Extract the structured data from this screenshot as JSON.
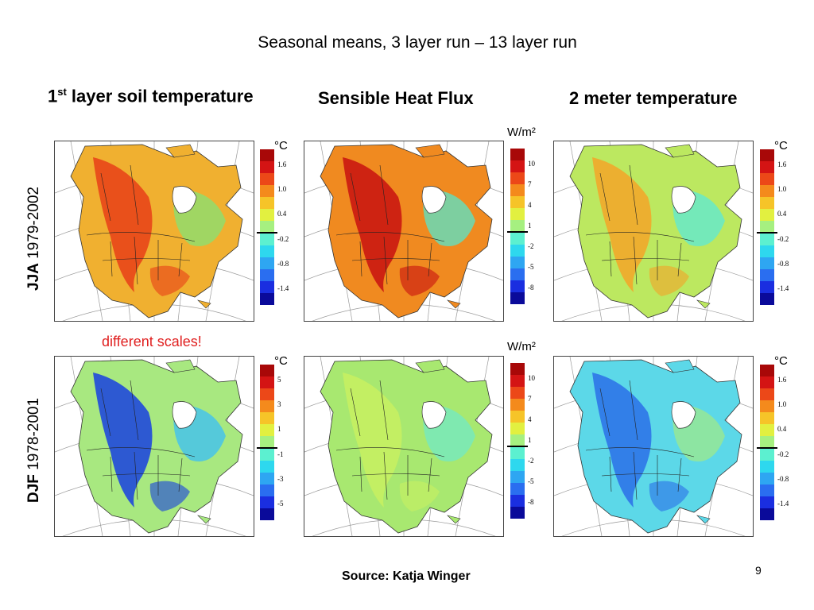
{
  "slide": {
    "title": "Seasonal means, 3 layer run – 13 layer run",
    "columns": [
      {
        "main": "1",
        "sup": "st",
        "rest": " layer soil temperature"
      },
      {
        "main": "Sensible Heat Flux",
        "sup": "",
        "rest": ""
      },
      {
        "main": "2 meter temperature",
        "sup": "",
        "rest": ""
      }
    ],
    "rows": [
      {
        "season": "JJA",
        "years": " 1979-2002"
      },
      {
        "season": "DJF",
        "years": " 1978-2001"
      }
    ],
    "note": "different scales!",
    "source": "Source: Katja Winger",
    "page_number": "9"
  },
  "colorbars": {
    "colors": [
      "#0a0a9a",
      "#1a2ee0",
      "#2a6ef0",
      "#2ea6f2",
      "#2ed8ee",
      "#5cf0d0",
      "#a6f080",
      "#e2f040",
      "#f6c428",
      "#f48a1c",
      "#ec4818",
      "#d41414",
      "#a80808"
    ],
    "panels": [
      {
        "unit": "°C",
        "ticks": [
          "1.6",
          "1.0",
          "0.4",
          "-0.2",
          "-0.8",
          "-1.4"
        ]
      },
      {
        "unit": "W/m²",
        "ticks": [
          "10",
          "7",
          "4",
          "1",
          "-2",
          "-5",
          "-8"
        ]
      },
      {
        "unit": "°C",
        "ticks": [
          "1.6",
          "1.0",
          "0.4",
          "-0.2",
          "-0.8",
          "-1.4"
        ]
      },
      {
        "unit": "°C",
        "ticks": [
          "5",
          "3",
          "1",
          "-1",
          "-3",
          "-5"
        ]
      },
      {
        "unit": "W/m²",
        "ticks": [
          "10",
          "7",
          "4",
          "1",
          "-2",
          "-5",
          "-8"
        ]
      },
      {
        "unit": "°C",
        "ticks": [
          "1.6",
          "1.0",
          "0.4",
          "-0.2",
          "-0.8",
          "-1.4"
        ]
      }
    ]
  },
  "maps": [
    {
      "name": "jja-soil-temperature-map",
      "base": "#f0b030",
      "patch": "#e84018",
      "patch2": "#8ce070"
    },
    {
      "name": "jja-sensible-heat-map",
      "base": "#f08a20",
      "patch": "#c81010",
      "patch2": "#60e0c0"
    },
    {
      "name": "jja-2m-temperature-map",
      "base": "#bce860",
      "patch": "#f4a428",
      "patch2": "#62e8d0"
    },
    {
      "name": "djf-soil-temperature-map",
      "base": "#a8e880",
      "patch": "#1840e0",
      "patch2": "#40c0f0"
    },
    {
      "name": "djf-sensible-heat-map",
      "base": "#a8e870",
      "patch": "#c8f060",
      "patch2": "#74e8c0"
    },
    {
      "name": "djf-2m-temperature-map",
      "base": "#5cd8e8",
      "patch": "#2a70e8",
      "patch2": "#9ae890"
    }
  ]
}
